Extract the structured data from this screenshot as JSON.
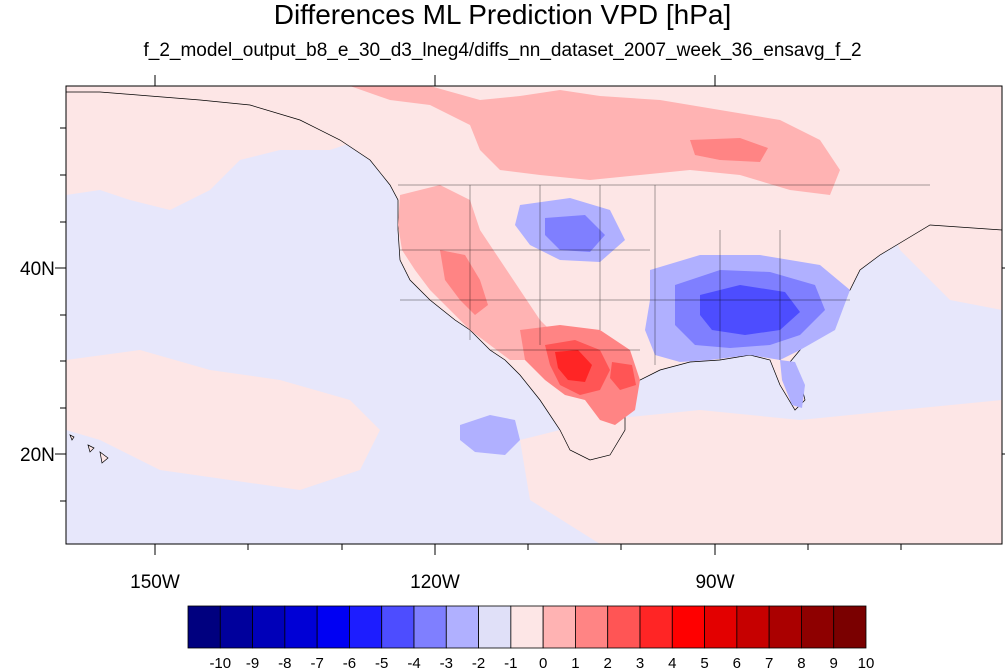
{
  "figure": {
    "title": "Differences ML Prediction VPD [hPa]",
    "subtitle": "f_2_model_output_b8_e_30_d3_lneg4/diffs_nn_dataset_2007_week_36_ensavg_f_2"
  },
  "axes": {
    "longitude_labels": [
      "150W",
      "120W",
      "90W"
    ],
    "latitude_labels": [
      "40N",
      "20N"
    ]
  },
  "colorbar": {
    "levels": [
      "-10",
      "-9",
      "-8",
      "-7",
      "-6",
      "-5",
      "-4",
      "-3",
      "-2",
      "-1",
      "0",
      "1",
      "2",
      "3",
      "4",
      "5",
      "6",
      "7",
      "8",
      "9",
      "10"
    ],
    "colors": [
      "#00007f",
      "#00009c",
      "#0000b9",
      "#0000d6",
      "#0000f3",
      "#1d1dff",
      "#4d4dff",
      "#7f7fff",
      "#b0b0ff",
      "#e0e0f8",
      "#fde6e6",
      "#ffb3b3",
      "#ff8484",
      "#ff5555",
      "#ff2525",
      "#ff0000",
      "#e30000",
      "#c60000",
      "#aa0000",
      "#8e0000",
      "#7a0000"
    ]
  },
  "map_colors": {
    "ocean_base": "#e7e7fb",
    "land_base": "#fde6e6",
    "border": "#000000"
  }
}
